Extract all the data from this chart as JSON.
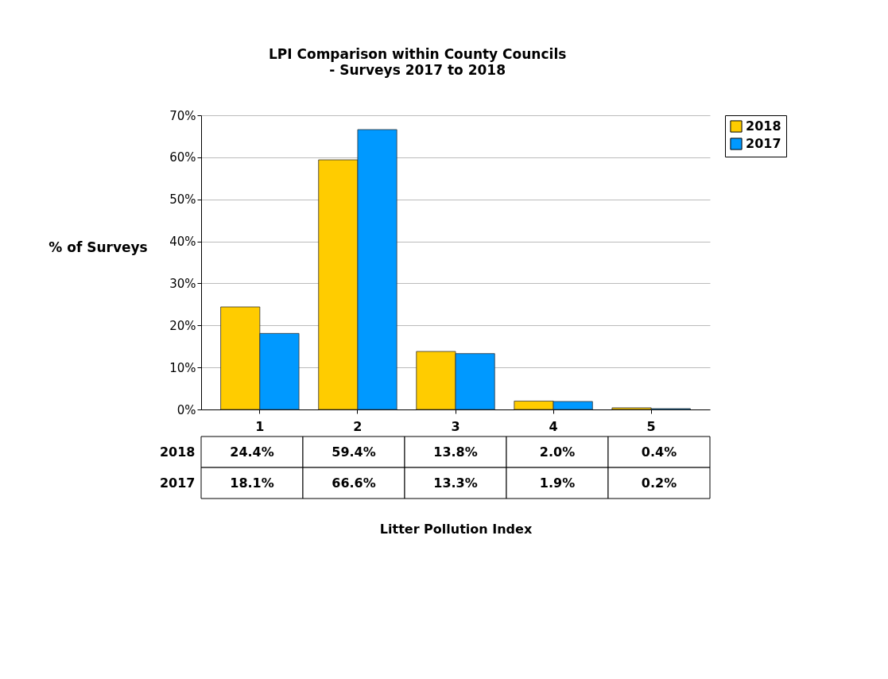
{
  "chart_data": {
    "type": "bar",
    "title": "LPI Comparison within County Councils",
    "subtitle": "- Surveys 2017 to 2018",
    "annotations": [
      "Litter Pollution Index"
    ],
    "ylabel": "% of Surveys",
    "categories": [
      "1",
      "2",
      "3",
      "4",
      "5"
    ],
    "series": [
      {
        "name": "2018",
        "color": "#ffcc00",
        "values": [
          24.4,
          59.4,
          13.8,
          2.0,
          0.4
        ],
        "value_labels": [
          "24.4%",
          "59.4%",
          "13.8%",
          "2.0%",
          "0.4%"
        ]
      },
      {
        "name": "2017",
        "color": "#0099ff",
        "values": [
          18.1,
          66.6,
          13.3,
          1.9,
          0.2
        ],
        "value_labels": [
          "18.1%",
          "66.6%",
          "13.3%",
          "1.9%",
          "0.2%"
        ]
      }
    ],
    "ylim": [
      0,
      70
    ],
    "yticks": [
      {
        "value": 0,
        "label": "0%"
      },
      {
        "value": 10,
        "label": "10%"
      },
      {
        "value": 20,
        "label": "20%"
      },
      {
        "value": 30,
        "label": "30%"
      },
      {
        "value": 40,
        "label": "40%"
      },
      {
        "value": 50,
        "label": "50%"
      },
      {
        "value": 60,
        "label": "60%"
      },
      {
        "value": 70,
        "label": "70%"
      }
    ],
    "grid": "y",
    "legend": "right"
  }
}
